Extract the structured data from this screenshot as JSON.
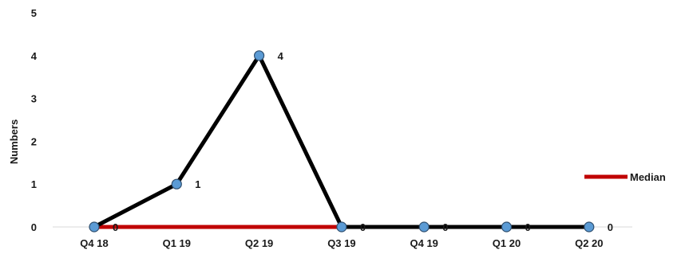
{
  "chart_data": {
    "type": "line",
    "categories": [
      "Q4 18",
      "Q1 19",
      "Q2 19",
      "Q3 19",
      "Q4 19",
      "Q1 20",
      "Q2 20"
    ],
    "ylabel": "Numbers",
    "xlabel": "",
    "ylim": [
      0,
      5
    ],
    "yticks": [
      "0",
      "1",
      "2",
      "3",
      "4",
      "5"
    ],
    "grid": false,
    "legend_position": "right",
    "series": [
      {
        "values": [
          0,
          1,
          4,
          0,
          0,
          0,
          0
        ],
        "data_labels": [
          "0",
          "1",
          "4",
          "0",
          "0",
          "0",
          "0"
        ],
        "color": "#000000",
        "marker_color": "#5b9bd5"
      },
      {
        "name": "Median",
        "values": [
          0,
          0,
          0,
          0,
          0,
          0,
          0
        ],
        "color": "#c00000"
      }
    ]
  }
}
